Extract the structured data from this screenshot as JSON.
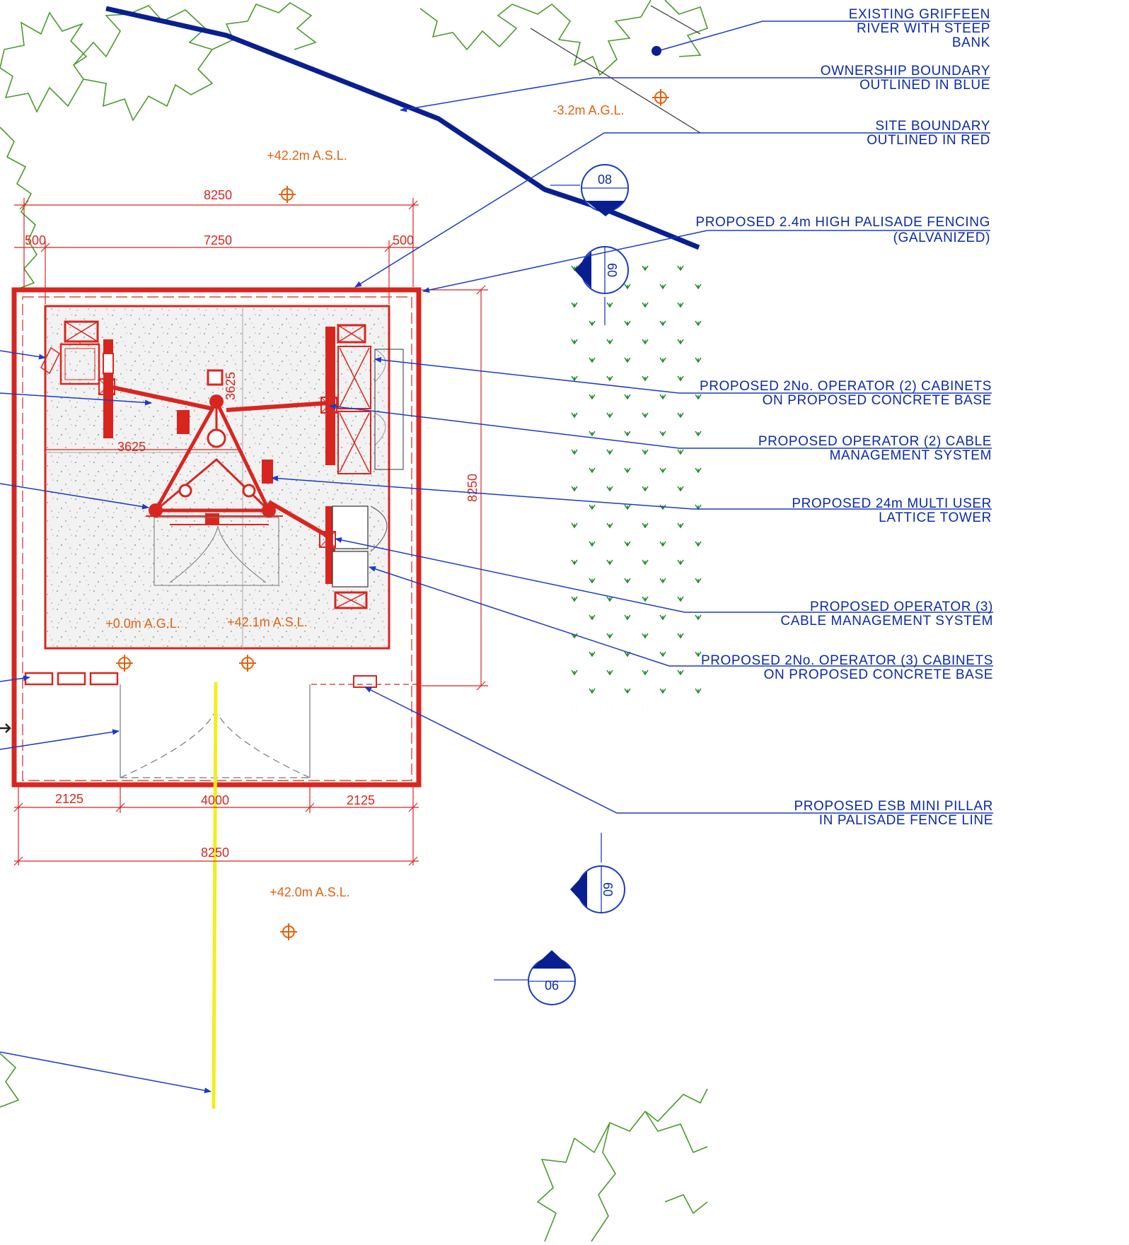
{
  "notes": {
    "river": {
      "line1": "EXISTING GRIFFEEN",
      "line2": "RIVER WITH STEEP",
      "line3": "BANK"
    },
    "ownership": {
      "line1": "OWNERSHIP BOUNDARY",
      "line2": "OUTLINED IN BLUE"
    },
    "site": {
      "line1": "SITE BOUNDARY",
      "line2": "OUTLINED IN RED"
    },
    "fencing": {
      "line1": "PROPOSED 2.4m HIGH PALISADE FENCING",
      "line2": "(GALVANIZED)"
    },
    "op2_cabinets": {
      "line1": "PROPOSED 2No. OPERATOR (2) CABINETS",
      "line2": "ON PROPOSED CONCRETE BASE"
    },
    "op2_cable": {
      "line1": "PROPOSED OPERATOR (2) CABLE",
      "line2": "MANAGEMENT SYSTEM"
    },
    "tower": {
      "line1": "PROPOSED 24m MULTI USER",
      "line2": "LATTICE TOWER"
    },
    "op3_cable": {
      "line1": "PROPOSED OPERATOR (3)",
      "line2": "CABLE MANAGEMENT SYSTEM"
    },
    "op3_cabinets": {
      "line1": "PROPOSED 2No. OPERATOR (3) CABINETS",
      "line2": "ON PROPOSED CONCRETE BASE"
    },
    "esb": {
      "line1": "PROPOSED ESB MINI PILLAR",
      "line2": "IN PALISADE FENCE LINE"
    }
  },
  "dimensions": {
    "top_overall": "8250",
    "top_inner": "7250",
    "top_left_offset": "500",
    "top_right_offset": "500",
    "right_vertical": "8250",
    "tower_vertical": "3625",
    "tower_horizontal": "3625",
    "bottom_left": "2125",
    "bottom_gate": "4000",
    "bottom_right": "2125",
    "bottom_overall": "8250"
  },
  "levels": {
    "agl_top": "-3.2m A.G.L.",
    "asl_top": "+42.2m A.S.L.",
    "agl_compound": "+0.0m A.G.L.",
    "asl_compound": "+42.1m A.S.L.",
    "asl_bottom": "+42.0m A.S.L."
  },
  "section_markers": {
    "top": "08",
    "right_upper": "09",
    "right_lower": "09",
    "bottom": "06"
  },
  "colors": {
    "site_boundary_red": "#d8261f",
    "ownership_boundary_blue": "#0a1f8f",
    "annotation_blue": "#1a3ac9",
    "level_orange": "#e2620f",
    "vegetation_green": "#4c9a2a",
    "access_line_yellow": "#f2ee1c"
  }
}
